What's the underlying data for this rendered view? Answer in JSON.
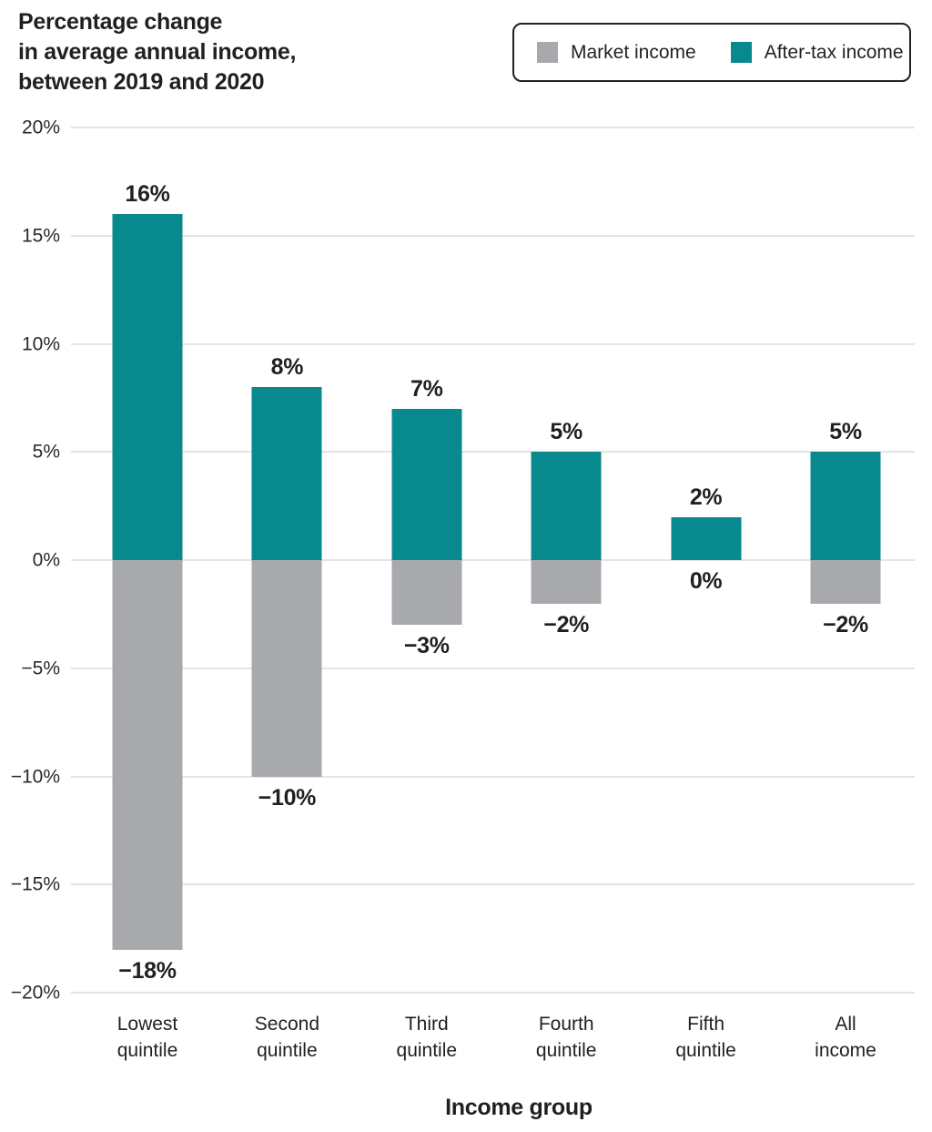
{
  "title": {
    "line1": "Percentage change",
    "line2": "in average annual income,",
    "line3": "between 2019 and 2020"
  },
  "legend": {
    "items": [
      {
        "label": "Market income",
        "color": "#a8a9ac"
      },
      {
        "label": "After-tax income",
        "color": "#08898e"
      }
    ]
  },
  "chart_data": {
    "type": "bar",
    "subtype": "diverging-stacked",
    "categories": [
      "Lowest\nquintile",
      "Second\nquintile",
      "Third\nquintile",
      "Fourth\nquintile",
      "Fifth\nquintile",
      "All\nincome"
    ],
    "series": [
      {
        "name": "After-tax income",
        "color": "#08898e",
        "values": [
          16,
          8,
          7,
          5,
          2,
          5
        ],
        "value_labels": [
          "16%",
          "8%",
          "7%",
          "5%",
          "2%",
          "5%"
        ]
      },
      {
        "name": "Market income",
        "color": "#a8a9ac",
        "values": [
          -18,
          -10,
          -3,
          -2,
          0,
          -2
        ],
        "value_labels": [
          "−18%",
          "−10%",
          "−3%",
          "−2%",
          "0%",
          "−2%"
        ]
      }
    ],
    "xlabel": "Income group",
    "ylabel": "",
    "ylim": [
      -20,
      20
    ],
    "ytick_step": 5,
    "yticks": [
      "20%",
      "15%",
      "10%",
      "5%",
      "0%",
      "−5%",
      "−10%",
      "−15%",
      "−20%"
    ],
    "grid": true,
    "legend_position": "top-right",
    "gridline_color": "#e4e4e4"
  }
}
